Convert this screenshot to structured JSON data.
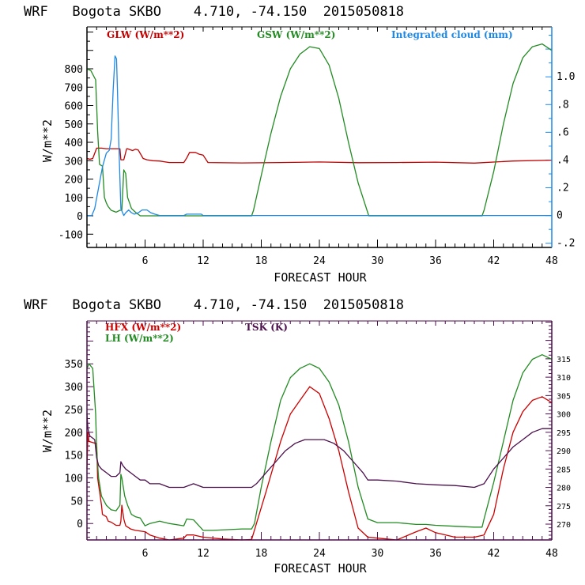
{
  "chart_data": [
    {
      "type": "line",
      "title": "WRF   Bogota SKBO    4.710, -74.150  2015050818",
      "xlabel": "FORECAST HOUR",
      "ylabel": "W/m**2",
      "y2label": "Integrated cloud (mm)",
      "xlim": [
        0,
        48
      ],
      "ylim": [
        -172,
        1028
      ],
      "y2lim": [
        -0.23,
        1.36
      ],
      "x_ticks": [
        6,
        12,
        18,
        24,
        30,
        36,
        42,
        48
      ],
      "x_tick_labels": [
        "6",
        "12",
        "18",
        "24",
        "30",
        "36",
        "42",
        "48"
      ],
      "y_ticks": [
        -100,
        0,
        100,
        200,
        300,
        400,
        500,
        600,
        700,
        800
      ],
      "y_tick_labels": [
        "-100",
        "0",
        "100",
        "200",
        "300",
        "400",
        "500",
        "600",
        "700",
        "800"
      ],
      "y2_ticks": [
        -0.2,
        0,
        0.2,
        0.4,
        0.6,
        0.8,
        1.0
      ],
      "y2_tick_labels": [
        "-.2",
        "0",
        ".2",
        ".4",
        ".6",
        ".8",
        "1.0"
      ],
      "grid": false,
      "legend_placement": "top",
      "series": [
        {
          "name": "GLW (W/m**2)",
          "color": "#c00000",
          "axis": "left",
          "x": [
            0,
            0.3,
            0.6,
            1.0,
            1.5,
            2,
            3,
            3.4,
            3.5,
            3.8,
            4.1,
            4.2,
            4.7,
            5.0,
            5.3,
            5.8,
            6.2,
            6.8,
            7.5,
            8.5,
            10,
            10.3,
            10.6,
            11.2,
            11.6,
            12.0,
            12.5,
            16,
            20,
            24,
            28,
            32,
            36,
            40,
            44,
            48
          ],
          "y": [
            312,
            308,
            312,
            368,
            368,
            365,
            365,
            365,
            305,
            305,
            365,
            365,
            355,
            362,
            358,
            312,
            305,
            300,
            298,
            290,
            290,
            315,
            345,
            345,
            335,
            330,
            290,
            288,
            290,
            293,
            289,
            290,
            292,
            287,
            298,
            303
          ]
        },
        {
          "name": "GSW (W/m**2)",
          "color": "#228b22",
          "axis": "left",
          "x": [
            0,
            0.4,
            0.9,
            1.1,
            1.3,
            1.6,
            1.8,
            2.0,
            2.2,
            2.5,
            3.0,
            3.4,
            3.6,
            3.8,
            4.0,
            4.2,
            4.4,
            4.6,
            5.0,
            5.5,
            6,
            10,
            12,
            17.0,
            17.2,
            18,
            19,
            20,
            21,
            22,
            23,
            24,
            25,
            26,
            27,
            28,
            29.1,
            40.8,
            41.0,
            42,
            43,
            44,
            45,
            46,
            47,
            48
          ],
          "y": [
            800,
            790,
            740,
            460,
            280,
            270,
            100,
            70,
            50,
            30,
            20,
            30,
            30,
            250,
            230,
            100,
            70,
            40,
            20,
            0,
            0,
            0,
            0,
            0,
            30,
            220,
            450,
            650,
            800,
            880,
            920,
            910,
            820,
            640,
            400,
            180,
            0,
            0,
            30,
            240,
            500,
            720,
            860,
            920,
            935,
            900
          ]
        },
        {
          "name": "Integrated cloud (mm)",
          "color": "#1e88e5",
          "axis": "right",
          "x": [
            0,
            0.5,
            0.8,
            1.2,
            1.6,
            2.0,
            2.3,
            2.5,
            2.7,
            2.9,
            3.05,
            3.15,
            3.3,
            3.5,
            3.8,
            4.0,
            4.3,
            4.6,
            4.9,
            5.3,
            5.7,
            6.2,
            6.6,
            7.0,
            7.5,
            8,
            10,
            10.3,
            11.8,
            12,
            14,
            48
          ],
          "y": [
            0,
            0.0,
            0.05,
            0.2,
            0.35,
            0.45,
            0.47,
            0.55,
            0.9,
            1.15,
            1.13,
            0.9,
            0.5,
            0.05,
            0.0,
            0.02,
            0.04,
            0.02,
            0.01,
            0.02,
            0.04,
            0.04,
            0.02,
            0.01,
            0.0,
            0.0,
            0.0,
            0.01,
            0.01,
            0.0,
            0.0,
            0.0
          ]
        }
      ]
    },
    {
      "type": "line",
      "title": "WRF   Bogota SKBO    4.710, -74.150  2015050818",
      "xlabel": "FORECAST HOUR",
      "ylabel": "W/m**2",
      "y2label": "TSK (K)",
      "xlim": [
        0,
        48
      ],
      "ylim": [
        -36,
        444
      ],
      "y2lim": [
        265.7,
        325.3
      ],
      "x_ticks": [
        6,
        12,
        18,
        24,
        30,
        36,
        42,
        48
      ],
      "x_tick_labels": [
        "6",
        "12",
        "18",
        "24",
        "30",
        "36",
        "42",
        "48"
      ],
      "y_ticks": [
        0,
        50,
        100,
        150,
        200,
        250,
        300,
        350
      ],
      "y_tick_labels": [
        "0",
        "50",
        "100",
        "150",
        "200",
        "250",
        "300",
        "350"
      ],
      "y2_ticks": [
        270,
        275,
        280,
        285,
        290,
        295,
        300,
        305,
        310,
        315
      ],
      "y2_tick_labels": [
        "270",
        "275",
        "280",
        "285",
        "290",
        "295",
        "300",
        "305",
        "310",
        "315"
      ],
      "grid": false,
      "legend_placement": "top-left",
      "series": [
        {
          "name": "HFX (W/m**2)",
          "color": "#cc0000",
          "axis": "left",
          "x": [
            0,
            0.1,
            0.2,
            1.0,
            1.1,
            1.5,
            1.6,
            2.0,
            2.2,
            2.5,
            3.0,
            3.4,
            3.5,
            3.6,
            3.8,
            4.0,
            4.5,
            5.0,
            6.0,
            6.5,
            7.5,
            8.5,
            10,
            10.3,
            11,
            12,
            14,
            16,
            17.0,
            17.5,
            18.5,
            20,
            21,
            22,
            23,
            24,
            25,
            26,
            27,
            28,
            29,
            30,
            32,
            34,
            35,
            36,
            38,
            40,
            41,
            42,
            43,
            44,
            45,
            46,
            47,
            48
          ],
          "y": [
            120,
            200,
            180,
            175,
            100,
            40,
            20,
            15,
            5,
            3,
            -4,
            -4,
            5,
            40,
            10,
            -5,
            -12,
            -15,
            -18,
            -25,
            -32,
            -36,
            -32,
            -25,
            -25,
            -30,
            -34,
            -36,
            -35,
            0,
            70,
            180,
            240,
            270,
            300,
            285,
            230,
            160,
            70,
            -10,
            -30,
            -32,
            -36,
            -18,
            -10,
            -20,
            -30,
            -30,
            -25,
            20,
            120,
            200,
            245,
            270,
            278,
            265
          ]
        },
        {
          "name": "LH (W/m**2)",
          "color": "#228b22",
          "axis": "left",
          "x": [
            0,
            0.2,
            0.6,
            0.9,
            1.0,
            1.2,
            1.5,
            2.0,
            2.5,
            3.0,
            3.4,
            3.5,
            3.6,
            3.9,
            4.2,
            4.6,
            5.0,
            5.5,
            6.0,
            6.5,
            7.5,
            8.5,
            10,
            10.3,
            11,
            12,
            13,
            16,
            17,
            17.3,
            18,
            19,
            20,
            21,
            22,
            23,
            24,
            25,
            26,
            27,
            28,
            29,
            30,
            32,
            34,
            35,
            36,
            38,
            40,
            40.8,
            41,
            42,
            43,
            44,
            45,
            46,
            47,
            48
          ],
          "y": [
            340,
            350,
            340,
            240,
            160,
            100,
            60,
            40,
            30,
            28,
            40,
            108,
            100,
            60,
            40,
            20,
            15,
            12,
            -5,
            0,
            5,
            0,
            -5,
            10,
            8,
            -15,
            -15,
            -12,
            -12,
            0,
            80,
            180,
            270,
            320,
            340,
            350,
            340,
            310,
            260,
            180,
            80,
            10,
            2,
            2,
            -2,
            -2,
            -4,
            -6,
            -8,
            -8,
            10,
            90,
            180,
            270,
            330,
            360,
            370,
            360
          ]
        },
        {
          "name": "TSK (K)",
          "color": "#4b0f4b",
          "axis": "right",
          "x": [
            0,
            0.1,
            0.3,
            0.8,
            1.0,
            1.2,
            1.5,
            2.0,
            2.5,
            3.0,
            3.4,
            3.5,
            3.7,
            4.0,
            4.5,
            5.0,
            5.5,
            6.0,
            6.5,
            7.5,
            8.5,
            10,
            11,
            12,
            14,
            16,
            17,
            17.5,
            18.5,
            19.5,
            20.5,
            21.5,
            22.5,
            23.5,
            24.5,
            25.5,
            26.5,
            27.5,
            28.5,
            29,
            30,
            32,
            34,
            36,
            38,
            40,
            41,
            42,
            43,
            44,
            45,
            46,
            47,
            48
          ],
          "y": [
            300,
            296,
            294,
            293,
            288,
            286,
            285,
            284,
            283,
            283,
            284,
            287,
            286,
            285,
            284,
            283,
            282,
            282,
            281,
            281,
            280,
            280,
            281,
            280,
            280,
            280,
            280,
            281,
            284,
            287,
            290,
            292,
            293,
            293,
            293,
            292,
            290,
            287,
            284,
            282,
            282,
            281.7,
            281,
            280.7,
            280.5,
            280,
            281,
            285,
            288,
            291,
            293,
            295,
            296,
            296
          ]
        }
      ]
    }
  ]
}
